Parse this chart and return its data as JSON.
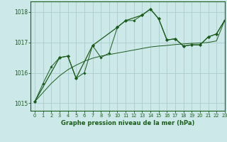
{
  "title": "Graphe pression niveau de la mer (hPa)",
  "bg_color": "#cce8e8",
  "grid_color": "#aacccc",
  "line_color": "#1a5c1a",
  "xlim": [
    -0.5,
    23
  ],
  "ylim": [
    1014.75,
    1018.35
  ],
  "yticks": [
    1015,
    1016,
    1017,
    1018
  ],
  "xticks": [
    0,
    1,
    2,
    3,
    4,
    5,
    6,
    7,
    8,
    9,
    10,
    11,
    12,
    13,
    14,
    15,
    16,
    17,
    18,
    19,
    20,
    21,
    22,
    23
  ],
  "series_dense_x": [
    0,
    1,
    2,
    3,
    4,
    5,
    6,
    7,
    8,
    9,
    10,
    11,
    12,
    13,
    14,
    15,
    16,
    17,
    18,
    19,
    20,
    21,
    22,
    23
  ],
  "series_dense_y": [
    1015.05,
    1015.65,
    1016.2,
    1016.5,
    1016.55,
    1015.82,
    1016.0,
    1016.9,
    1016.5,
    1016.65,
    1017.5,
    1017.72,
    1017.72,
    1017.9,
    1018.1,
    1017.78,
    1017.08,
    1017.12,
    1016.88,
    1016.92,
    1016.92,
    1017.18,
    1017.28,
    1017.73
  ],
  "series_sparse_x": [
    0,
    3,
    4,
    5,
    7,
    10,
    11,
    13,
    14,
    15,
    16,
    17,
    18,
    19,
    20,
    21,
    22,
    23
  ],
  "series_sparse_y": [
    1015.05,
    1016.5,
    1016.55,
    1015.82,
    1016.9,
    1017.5,
    1017.72,
    1017.9,
    1018.1,
    1017.78,
    1017.08,
    1017.12,
    1016.88,
    1016.92,
    1016.92,
    1017.18,
    1017.28,
    1017.73
  ],
  "series_trend_x": [
    0,
    1,
    2,
    3,
    4,
    5,
    6,
    7,
    8,
    9,
    10,
    11,
    12,
    13,
    14,
    15,
    16,
    17,
    18,
    19,
    20,
    21,
    22,
    23
  ],
  "series_trend_y": [
    1015.05,
    1015.35,
    1015.65,
    1015.9,
    1016.1,
    1016.25,
    1016.38,
    1016.48,
    1016.55,
    1016.6,
    1016.65,
    1016.7,
    1016.75,
    1016.8,
    1016.85,
    1016.88,
    1016.9,
    1016.93,
    1016.95,
    1016.97,
    1016.98,
    1017.0,
    1017.05,
    1017.73
  ]
}
